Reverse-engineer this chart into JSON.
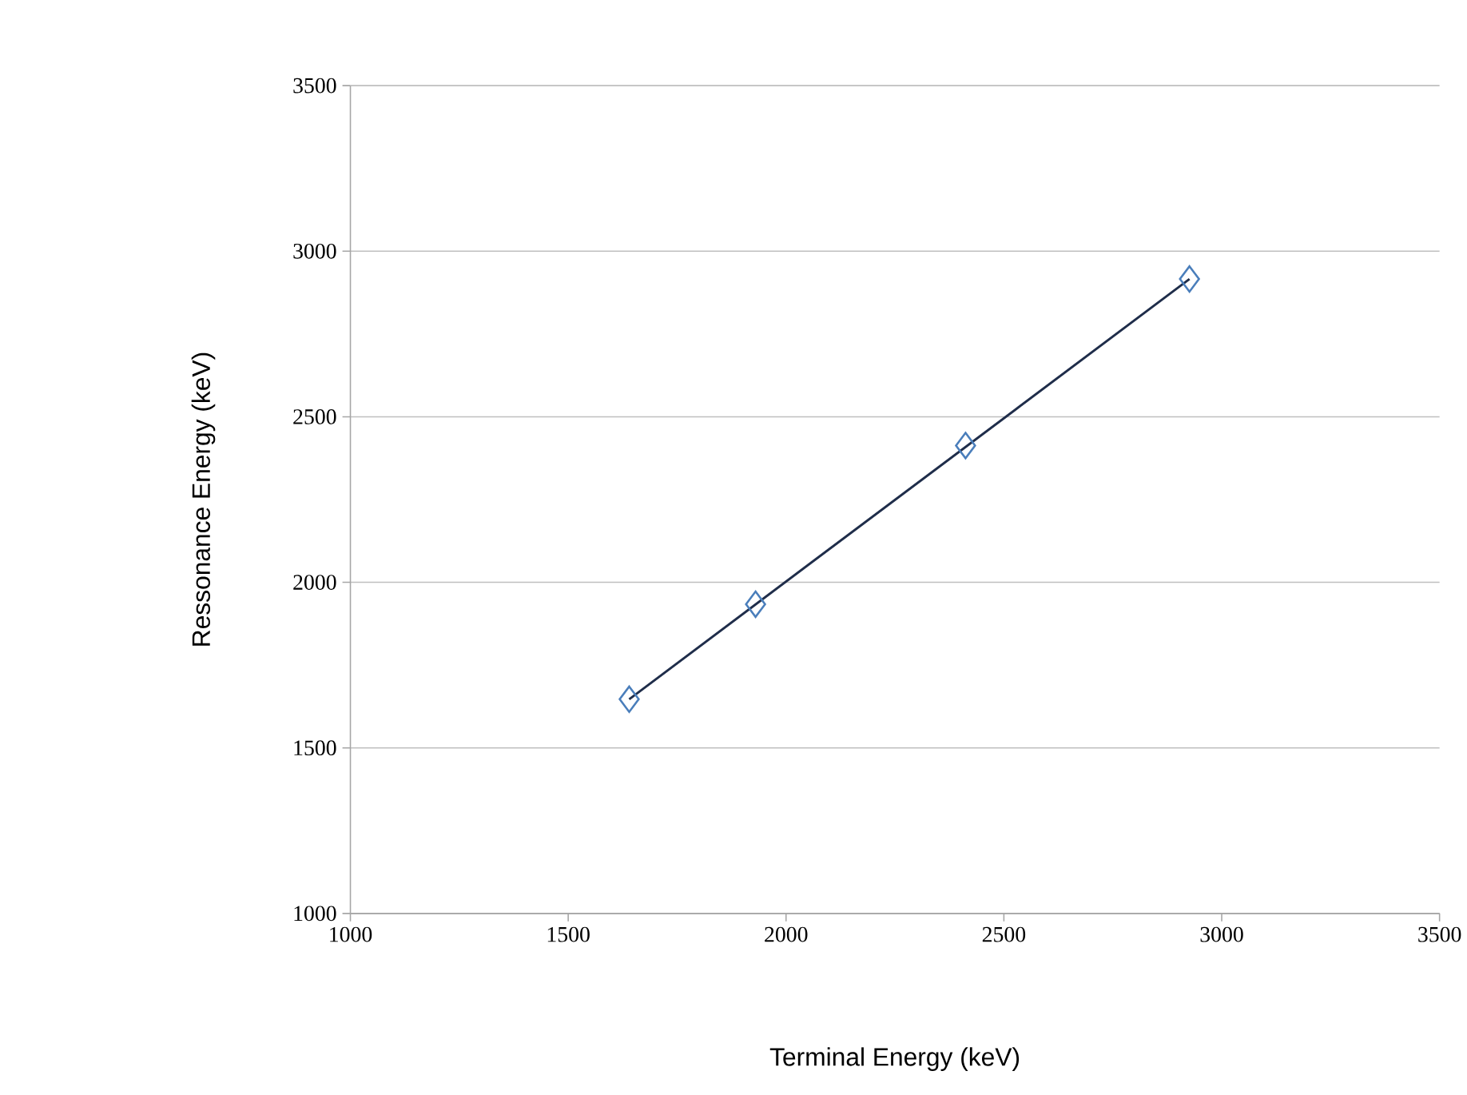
{
  "chart_data": {
    "type": "scatter",
    "xlabel": "Terminal Energy (keV)",
    "ylabel": "Ressonance Energy (keV)",
    "xlim": [
      1000,
      3500
    ],
    "xticks": [
      1000,
      1500,
      2000,
      2500,
      3000,
      3500
    ],
    "ylim": [
      1000,
      3500
    ],
    "yticks": [
      1000,
      1500,
      2000,
      2500,
      3000,
      3500
    ],
    "grid": "y",
    "series": [
      {
        "color": "#4a7ebb",
        "marker": "diamond",
        "x": [
          1640,
          1930,
          2412,
          2926
        ],
        "values": [
          1647,
          1934,
          2413,
          2916
        ]
      },
      {
        "type": "line",
        "color": "#1f2d4a",
        "marker": "none",
        "line_style": "solid",
        "x": [
          1640,
          2926
        ],
        "values": [
          1647,
          2916
        ]
      }
    ]
  }
}
